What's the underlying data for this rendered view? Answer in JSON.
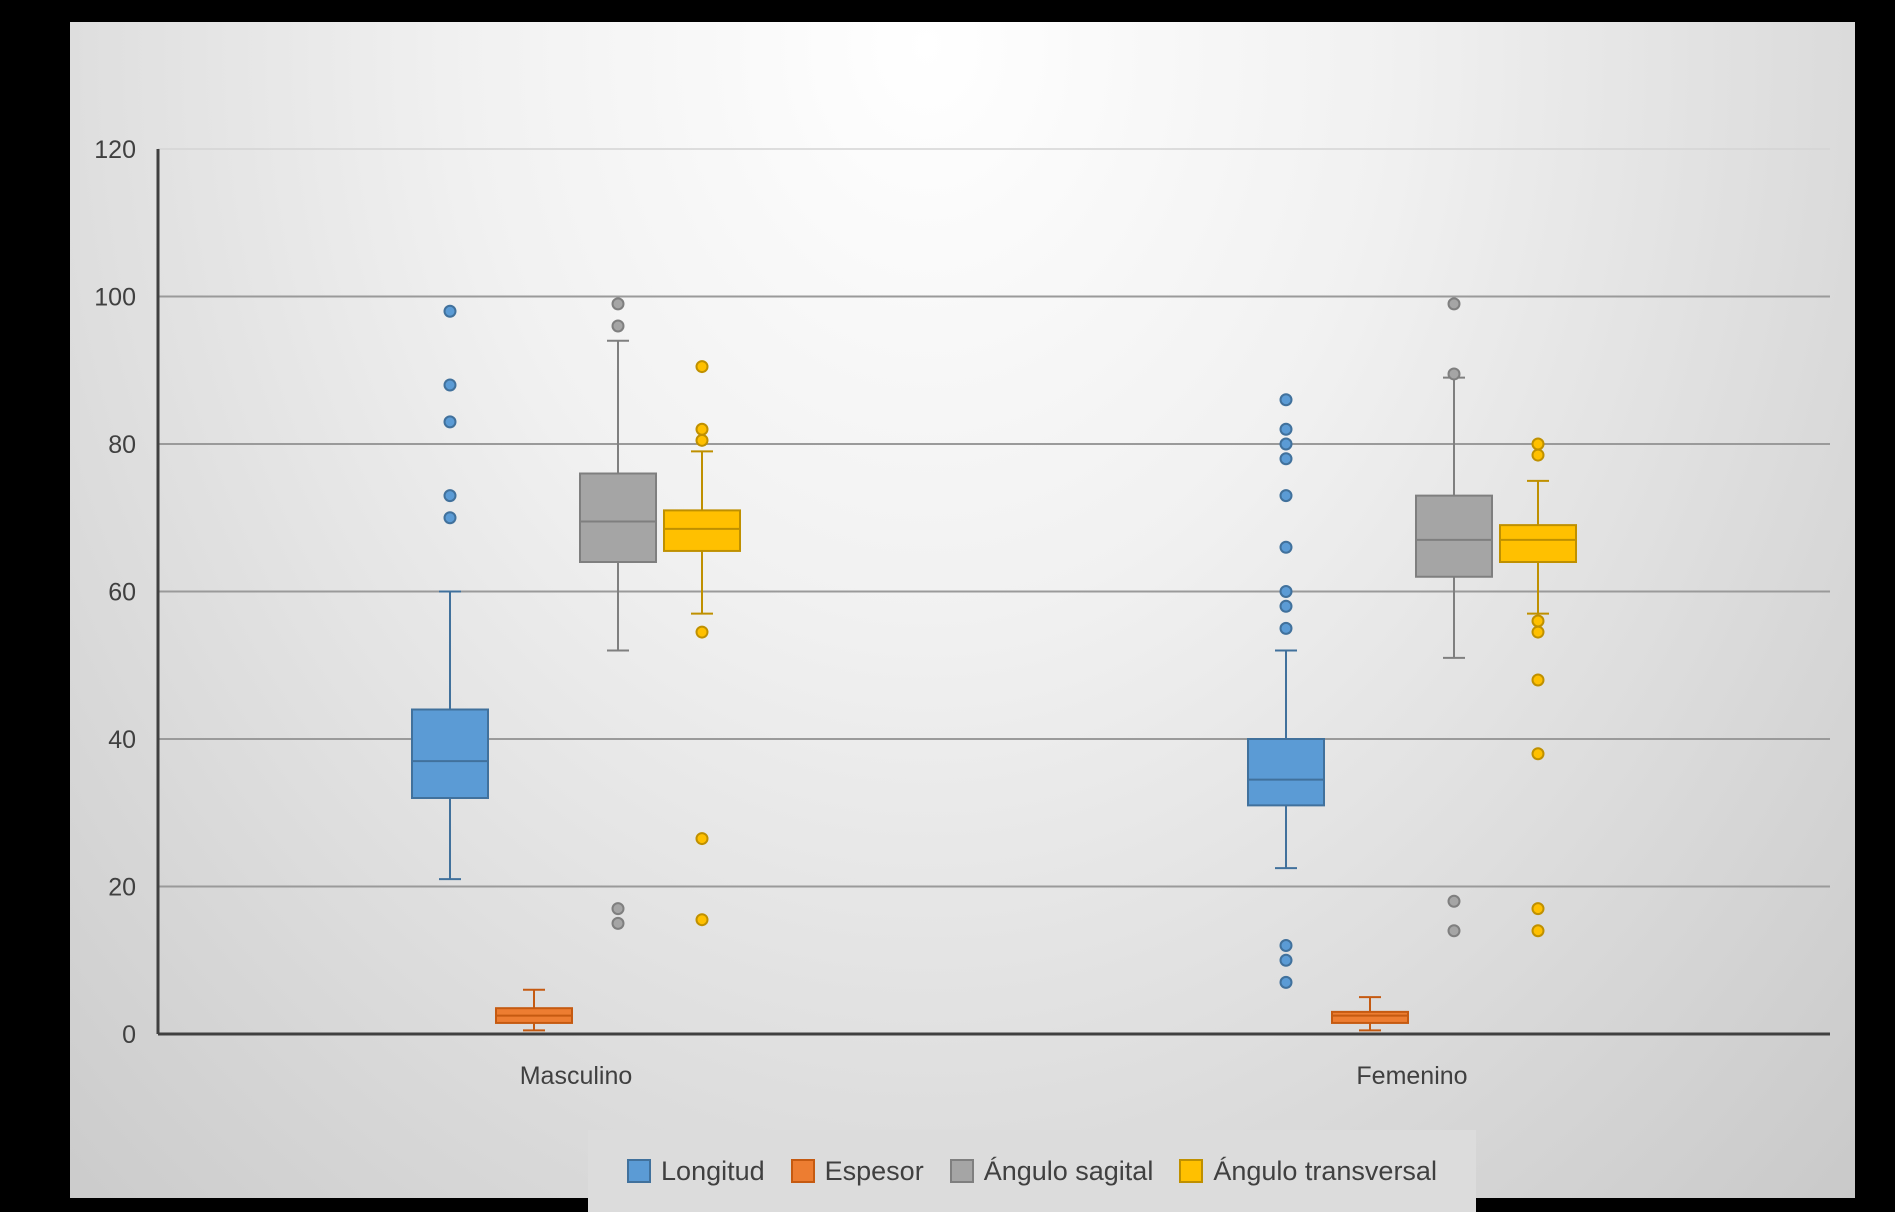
{
  "chart_data": {
    "type": "boxplot",
    "title": "",
    "xlabel": "",
    "ylabel": "",
    "ylim": [
      0,
      120
    ],
    "yticks": [
      0,
      20,
      40,
      60,
      80,
      100,
      120
    ],
    "grid": true,
    "legend_position": "bottom",
    "categories": [
      "Masculino",
      "Femenino"
    ],
    "series": [
      {
        "name": "Longitud",
        "color": "#5b9bd5",
        "stroke": "#41719c",
        "boxes": [
          {
            "min": 21,
            "q1": 32,
            "median": 37,
            "q3": 44,
            "max": 60,
            "outliers": [
              70,
              73,
              83,
              88,
              98
            ]
          },
          {
            "min": 22.5,
            "q1": 31,
            "median": 34.5,
            "q3": 40,
            "max": 52,
            "outliers": [
              7,
              10,
              12,
              55,
              58,
              60,
              66,
              73,
              78,
              80,
              82,
              86
            ]
          }
        ]
      },
      {
        "name": "Espesor",
        "color": "#ed7d31",
        "stroke": "#c55a11",
        "boxes": [
          {
            "min": 0.5,
            "q1": 1.5,
            "median": 2.5,
            "q3": 3.5,
            "max": 6,
            "outliers": []
          },
          {
            "min": 0.5,
            "q1": 1.5,
            "median": 2.5,
            "q3": 3,
            "max": 5,
            "outliers": []
          }
        ]
      },
      {
        "name": "Ángulo sagital",
        "color": "#a5a5a5",
        "stroke": "#7f7f7f",
        "boxes": [
          {
            "min": 52,
            "q1": 64,
            "median": 69.5,
            "q3": 76,
            "max": 94,
            "outliers": [
              15,
              17,
              96,
              99
            ]
          },
          {
            "min": 51,
            "q1": 62,
            "median": 67,
            "q3": 73,
            "max": 89,
            "outliers": [
              14,
              18,
              89.5,
              99
            ]
          }
        ]
      },
      {
        "name": "Ángulo transversal",
        "color": "#ffc000",
        "stroke": "#bf9000",
        "boxes": [
          {
            "min": 57,
            "q1": 65.5,
            "median": 68.5,
            "q3": 71,
            "max": 79,
            "outliers": [
              15.5,
              26.5,
              54.5,
              80.5,
              82,
              90.5
            ]
          },
          {
            "min": 57,
            "q1": 64,
            "median": 67,
            "q3": 69,
            "max": 75,
            "outliers": [
              14,
              17,
              38,
              48,
              54.5,
              56,
              78.5,
              80
            ]
          }
        ]
      }
    ]
  }
}
